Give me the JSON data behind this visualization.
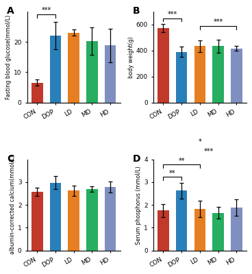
{
  "categories": [
    "CON",
    "DOP",
    "LD",
    "MD",
    "HD"
  ],
  "colors": [
    "#C0392B",
    "#2980B9",
    "#E67E22",
    "#27AE60",
    "#7F8FBF"
  ],
  "A_values": [
    6.5,
    22.0,
    23.0,
    20.2,
    18.8
  ],
  "A_errors": [
    1.0,
    4.5,
    1.0,
    4.5,
    5.5
  ],
  "A_ylabel": "Fasting blood glucose(mmol/L)",
  "A_ylim": [
    0,
    30
  ],
  "A_yticks": [
    0,
    10,
    20
  ],
  "B_values": [
    570,
    390,
    435,
    435,
    415
  ],
  "B_errors": [
    32,
    38,
    45,
    50,
    18
  ],
  "B_ylabel": "body weight(g)",
  "B_ylim": [
    0,
    700
  ],
  "B_yticks": [
    0,
    200,
    400,
    600
  ],
  "C_values": [
    2.58,
    2.98,
    2.62,
    2.7,
    2.78
  ],
  "C_errors": [
    0.18,
    0.3,
    0.22,
    0.12,
    0.25
  ],
  "C_ylabel": "albumin-corrected calcium(mmol/L)",
  "C_ylim": [
    0,
    4
  ],
  "C_yticks": [
    0,
    1,
    2,
    3
  ],
  "D_values": [
    1.75,
    2.62,
    1.82,
    1.65,
    1.88
  ],
  "D_errors": [
    0.28,
    0.35,
    0.35,
    0.25,
    0.35
  ],
  "D_ylabel": "Serum phosphorus (mmol/L)",
  "D_ylim": [
    0,
    4
  ],
  "D_yticks": [
    0,
    1,
    2,
    3,
    4
  ]
}
